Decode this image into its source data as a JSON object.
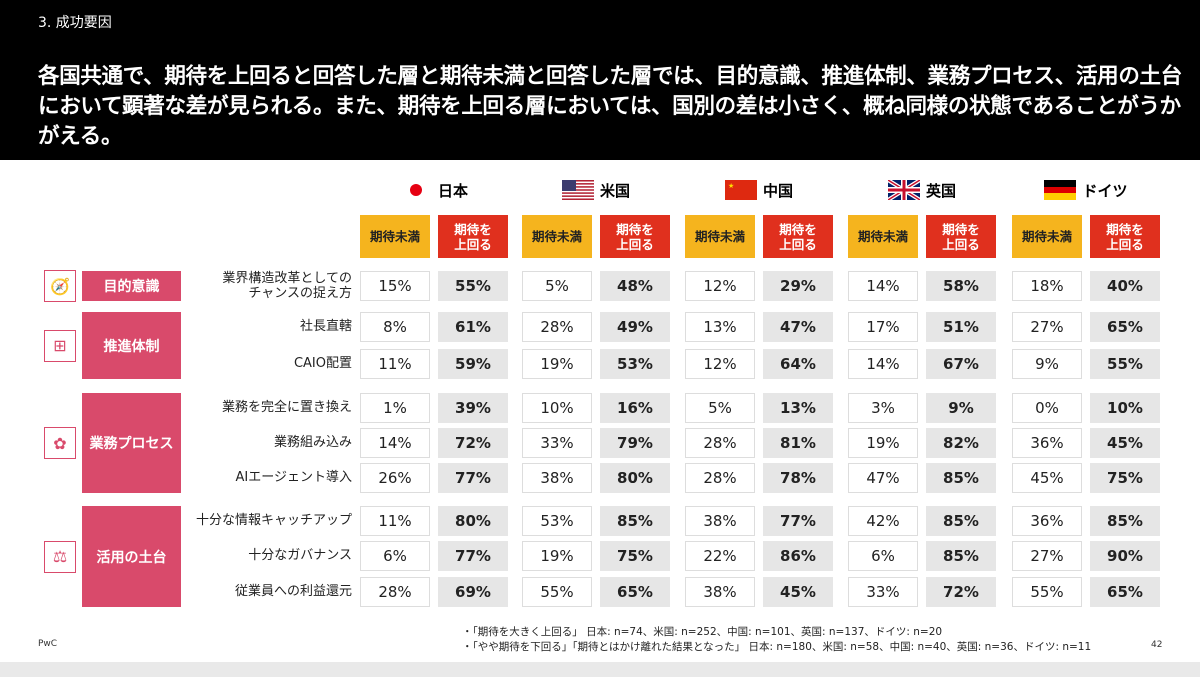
{
  "header": {
    "section": "3. 成功要因",
    "title": "各国共通で、期待を上回ると回答した層と期待未満と回答した層では、目的意識、推進体制、業務プロセス、活用の土台において顕著な差が見られる。また、期待を上回る層においては、国別の差は小さく、概ね同様の状態であることがうかがえる。"
  },
  "countries": [
    {
      "name": "日本",
      "flag": "japan-flag"
    },
    {
      "name": "米国",
      "flag": "us-flag"
    },
    {
      "name": "中国",
      "flag": "china-flag"
    },
    {
      "name": "英国",
      "flag": "uk-flag"
    },
    {
      "name": "ドイツ",
      "flag": "germany-flag"
    }
  ],
  "column_labels": {
    "below": "期待未満",
    "above": "期待を\n上回る"
  },
  "colors": {
    "below": "#f5b41e",
    "above": "#e0301e",
    "group": "#d94a6b"
  },
  "groups": [
    {
      "label": "目的意識",
      "icon": "compass-icon",
      "rows": [
        {
          "label": "業界構造改革としての\nチャンスの捉え方",
          "values": [
            [
              "15%",
              "55%"
            ],
            [
              "5%",
              "48%"
            ],
            [
              "12%",
              "29%"
            ],
            [
              "14%",
              "58%"
            ],
            [
              "18%",
              "40%"
            ]
          ]
        }
      ]
    },
    {
      "label": "推進体制",
      "icon": "org-chart-icon",
      "rows": [
        {
          "label": "社長直轄",
          "values": [
            [
              "8%",
              "61%"
            ],
            [
              "28%",
              "49%"
            ],
            [
              "13%",
              "47%"
            ],
            [
              "17%",
              "51%"
            ],
            [
              "27%",
              "65%"
            ]
          ]
        },
        {
          "label": "CAIO配置",
          "values": [
            [
              "11%",
              "59%"
            ],
            [
              "19%",
              "53%"
            ],
            [
              "12%",
              "64%"
            ],
            [
              "14%",
              "67%"
            ],
            [
              "9%",
              "55%"
            ]
          ]
        }
      ]
    },
    {
      "label": "業務プロセス",
      "icon": "process-icon",
      "rows": [
        {
          "label": "業務を完全に置き換え",
          "values": [
            [
              "1%",
              "39%"
            ],
            [
              "10%",
              "16%"
            ],
            [
              "5%",
              "13%"
            ],
            [
              "3%",
              "9%"
            ],
            [
              "0%",
              "10%"
            ]
          ]
        },
        {
          "label": "業務組み込み",
          "values": [
            [
              "14%",
              "72%"
            ],
            [
              "33%",
              "79%"
            ],
            [
              "28%",
              "81%"
            ],
            [
              "19%",
              "82%"
            ],
            [
              "36%",
              "45%"
            ]
          ]
        },
        {
          "label": "AIエージェント導入",
          "values": [
            [
              "26%",
              "77%"
            ],
            [
              "38%",
              "80%"
            ],
            [
              "28%",
              "78%"
            ],
            [
              "47%",
              "85%"
            ],
            [
              "45%",
              "75%"
            ]
          ]
        }
      ]
    },
    {
      "label": "活用の土台",
      "icon": "scale-icon",
      "rows": [
        {
          "label": "十分な情報キャッチアップ",
          "values": [
            [
              "11%",
              "80%"
            ],
            [
              "53%",
              "85%"
            ],
            [
              "38%",
              "77%"
            ],
            [
              "42%",
              "85%"
            ],
            [
              "36%",
              "85%"
            ]
          ]
        },
        {
          "label": "十分なガバナンス",
          "values": [
            [
              "6%",
              "77%"
            ],
            [
              "19%",
              "75%"
            ],
            [
              "22%",
              "86%"
            ],
            [
              "6%",
              "85%"
            ],
            [
              "27%",
              "90%"
            ]
          ]
        },
        {
          "label": "従業員への利益還元",
          "values": [
            [
              "28%",
              "69%"
            ],
            [
              "55%",
              "65%"
            ],
            [
              "38%",
              "45%"
            ],
            [
              "33%",
              "72%"
            ],
            [
              "55%",
              "65%"
            ]
          ]
        }
      ]
    }
  ],
  "footer": {
    "brand": "PwC",
    "notes": [
      "・「期待を大きく上回る」 日本: n=74、米国: n=252、中国: n=101、英国: n=137、ドイツ: n=20",
      "・「やや期待を下回る」「期待とはかけ離れた結果となった」 日本: n=180、米国: n=58、中国: n=40、英国: n=36、ドイツ: n=11"
    ],
    "page": "42"
  }
}
